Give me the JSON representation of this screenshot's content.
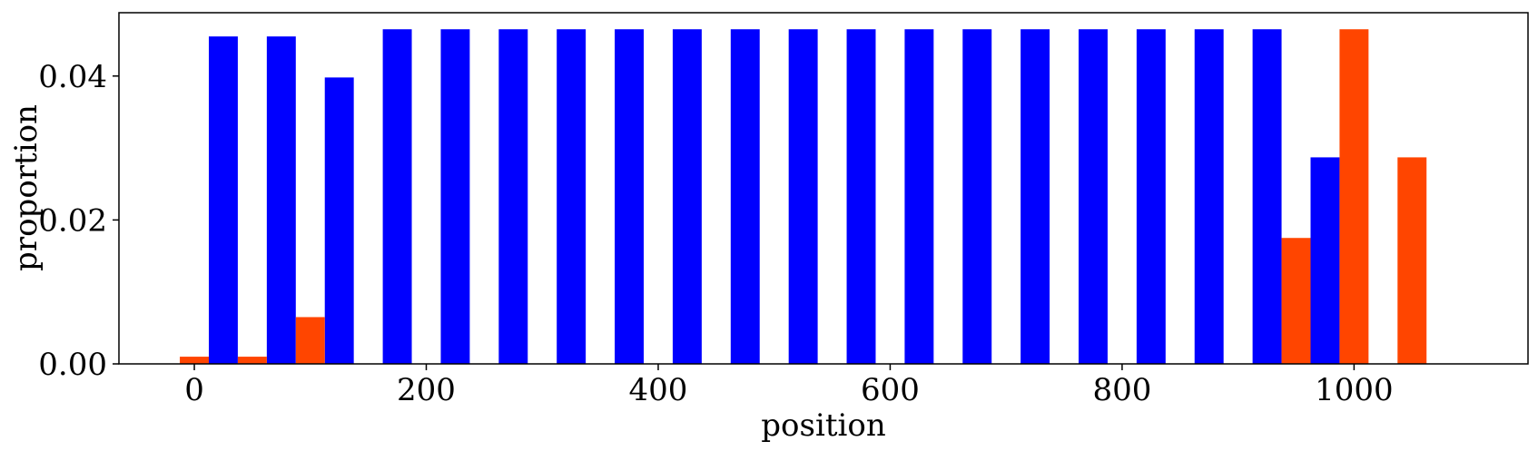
{
  "chart_data": {
    "type": "bar",
    "xlabel": "position",
    "ylabel": "proportion",
    "xlim": [
      -65,
      1150
    ],
    "ylim": [
      0,
      0.0488
    ],
    "xticks": [
      0,
      200,
      400,
      600,
      800,
      1000
    ],
    "xtick_labels": [
      "0",
      "200",
      "400",
      "600",
      "800",
      "1000"
    ],
    "yticks": [
      0,
      0.02,
      0.04
    ],
    "ytick_labels": [
      "0.00",
      "0.02",
      "0.04"
    ],
    "bar_width": 25,
    "grid": false,
    "legend": "none",
    "series": [
      {
        "color": "#0000ff",
        "x": [
          25,
          75,
          125,
          175,
          225,
          275,
          325,
          375,
          425,
          475,
          525,
          575,
          625,
          675,
          725,
          775,
          825,
          875,
          925,
          975
        ],
        "values": [
          0.0455,
          0.0455,
          0.0398,
          0.0465,
          0.0465,
          0.0465,
          0.0465,
          0.0465,
          0.0465,
          0.0465,
          0.0465,
          0.0465,
          0.0465,
          0.0465,
          0.0465,
          0.0465,
          0.0465,
          0.0465,
          0.0465,
          0.0287
        ]
      },
      {
        "color": "#ff4500",
        "x": [
          0,
          50,
          100,
          950,
          1000,
          1050
        ],
        "values": [
          0.001,
          0.001,
          0.0065,
          0.0175,
          0.0465,
          0.0287
        ]
      }
    ]
  }
}
